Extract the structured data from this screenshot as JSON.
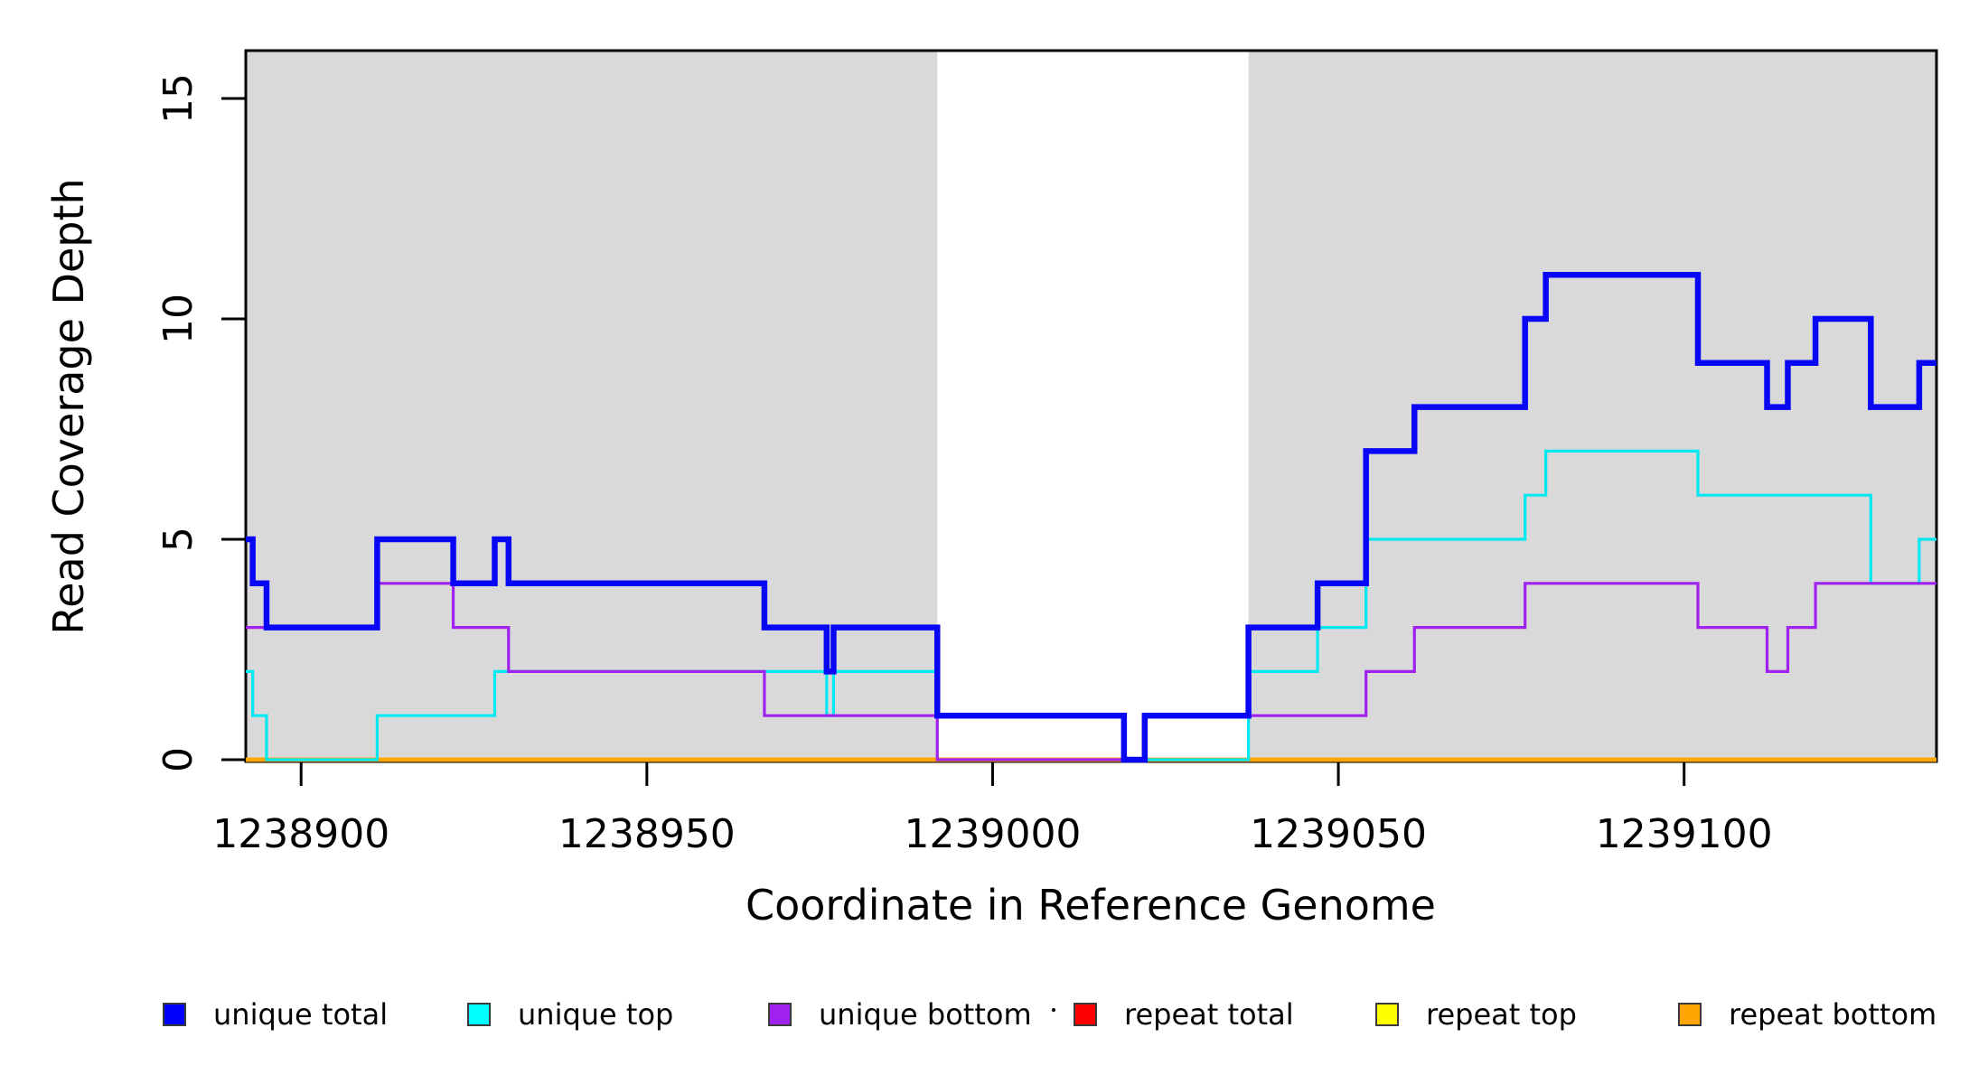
{
  "figure": {
    "background": "#ffffff"
  },
  "axes": {
    "x_label": "Coordinate in Reference Genome",
    "y_label": "Read Coverage Depth",
    "x_tick_labels": [
      "1238900",
      "1238950",
      "1239000",
      "1239050",
      "1239100"
    ],
    "y_tick_labels": [
      "0",
      "5",
      "10",
      "15"
    ]
  },
  "legend": {
    "items": [
      {
        "label": "unique total",
        "color": "#0000FF"
      },
      {
        "label": "unique top",
        "color": "#00FFFF"
      },
      {
        "label": "unique bottom",
        "color": "#A020F0"
      },
      {
        "label": "repeat total",
        "color": "#FF0000"
      },
      {
        "label": "repeat top",
        "color": "#FFFF00"
      },
      {
        "label": "repeat bottom",
        "color": "#FFA500"
      }
    ]
  },
  "chart_data": {
    "type": "line",
    "step": true,
    "title": "",
    "xlabel": "Coordinate in Reference Genome",
    "ylabel": "Read Coverage Depth",
    "xlim": [
      1238892,
      1239136.5
    ],
    "ylim": [
      0,
      16.1
    ],
    "x_tick_values": [
      1238900,
      1238950,
      1239000,
      1239050,
      1239100
    ],
    "y_tick_values": [
      0,
      5,
      10,
      15
    ],
    "grid": false,
    "legend_position": "bottom",
    "shaded_regions": [
      {
        "x0": 1238892,
        "x1": 1238992,
        "color": "#D9D9D9"
      },
      {
        "x0": 1239037,
        "x1": 1239136.5,
        "color": "#D9D9D9"
      }
    ],
    "series": [
      {
        "name": "repeat total",
        "color": "#FF0000",
        "line_width": 4.5,
        "steps": [
          [
            1238892,
            0
          ]
        ]
      },
      {
        "name": "repeat top",
        "color": "#FFFF00",
        "line_width": 4.5,
        "steps": [
          [
            1238892,
            0
          ]
        ]
      },
      {
        "name": "repeat bottom",
        "color": "#FFA500",
        "line_width": 4.5,
        "steps": [
          [
            1238892,
            0
          ]
        ]
      },
      {
        "name": "unique top",
        "color": "#00E8F0",
        "line_width": 3.2,
        "steps": [
          [
            1238892,
            2
          ],
          [
            1238893,
            1
          ],
          [
            1238895,
            0
          ],
          [
            1238911,
            1
          ],
          [
            1238928,
            2
          ],
          [
            1238976,
            1
          ],
          [
            1238977,
            2
          ],
          [
            1238992,
            1
          ],
          [
            1239019,
            0
          ],
          [
            1239037,
            2
          ],
          [
            1239047,
            3
          ],
          [
            1239054,
            5
          ],
          [
            1239077,
            6
          ],
          [
            1239080,
            7
          ],
          [
            1239102,
            6
          ],
          [
            1239127,
            4
          ],
          [
            1239134,
            5
          ]
        ]
      },
      {
        "name": "unique bottom",
        "color": "#A020F0",
        "line_width": 3.2,
        "steps": [
          [
            1238892,
            3
          ],
          [
            1238911,
            4
          ],
          [
            1238922,
            3
          ],
          [
            1238930,
            2
          ],
          [
            1238967,
            1
          ],
          [
            1238992,
            0
          ],
          [
            1239022,
            1
          ],
          [
            1239054,
            2
          ],
          [
            1239061,
            3
          ],
          [
            1239077,
            4
          ],
          [
            1239102,
            3
          ],
          [
            1239112,
            2
          ],
          [
            1239115,
            3
          ],
          [
            1239119,
            4
          ]
        ]
      },
      {
        "name": "unique total",
        "color": "#0707F5",
        "line_width": 6.5,
        "steps": [
          [
            1238892,
            5
          ],
          [
            1238893,
            4
          ],
          [
            1238895,
            3
          ],
          [
            1238911,
            5
          ],
          [
            1238922,
            4
          ],
          [
            1238928,
            5
          ],
          [
            1238930,
            4
          ],
          [
            1238967,
            3
          ],
          [
            1238976,
            2
          ],
          [
            1238977,
            3
          ],
          [
            1238992,
            1
          ],
          [
            1239019,
            0
          ],
          [
            1239022,
            1
          ],
          [
            1239037,
            3
          ],
          [
            1239047,
            4
          ],
          [
            1239054,
            7
          ],
          [
            1239061,
            8
          ],
          [
            1239077,
            10
          ],
          [
            1239080,
            11
          ],
          [
            1239102,
            9
          ],
          [
            1239112,
            8
          ],
          [
            1239115,
            9
          ],
          [
            1239119,
            10
          ],
          [
            1239127,
            8
          ],
          [
            1239134,
            9
          ]
        ]
      }
    ]
  }
}
